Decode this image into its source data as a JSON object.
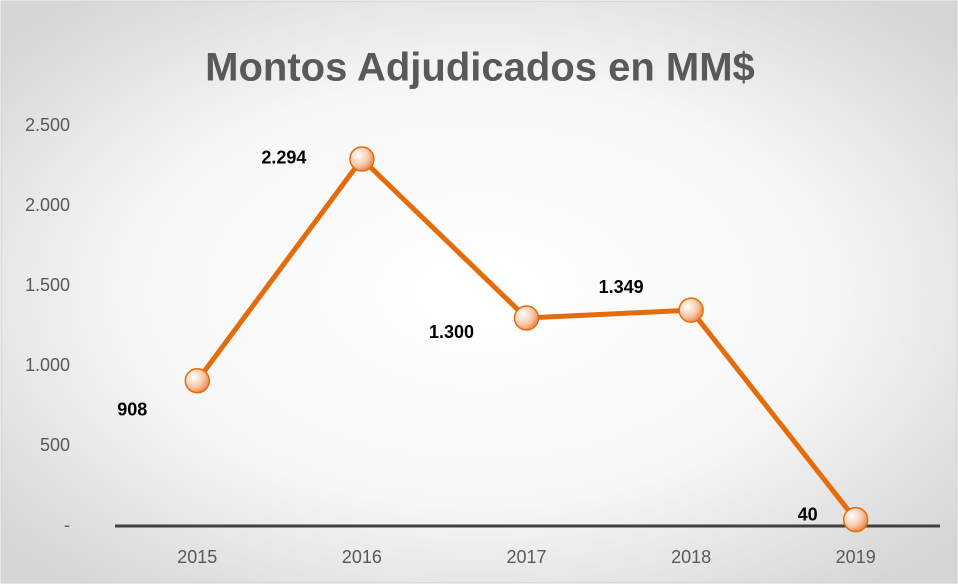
{
  "chart_data": {
    "type": "line",
    "title": "Montos Adjudicados en MM$",
    "categories": [
      "2015",
      "2016",
      "2017",
      "2018",
      "2019"
    ],
    "series": [
      {
        "name": "Montos",
        "color": "#e46c0a",
        "values": [
          908,
          2294,
          1300,
          1349,
          40
        ],
        "value_labels": [
          "908",
          "2.294",
          "1.300",
          "1.349",
          "40"
        ]
      }
    ],
    "ylim": [
      0,
      2500
    ],
    "yticks": [
      {
        "value": 0,
        "label": "-"
      },
      500,
      {
        "value": 1000,
        "label": "1.000"
      },
      {
        "value": 1500,
        "label": "1.500"
      },
      {
        "value": 2000,
        "label": "2.000"
      },
      {
        "value": 2500,
        "label": "2.500"
      }
    ],
    "grid": false
  }
}
